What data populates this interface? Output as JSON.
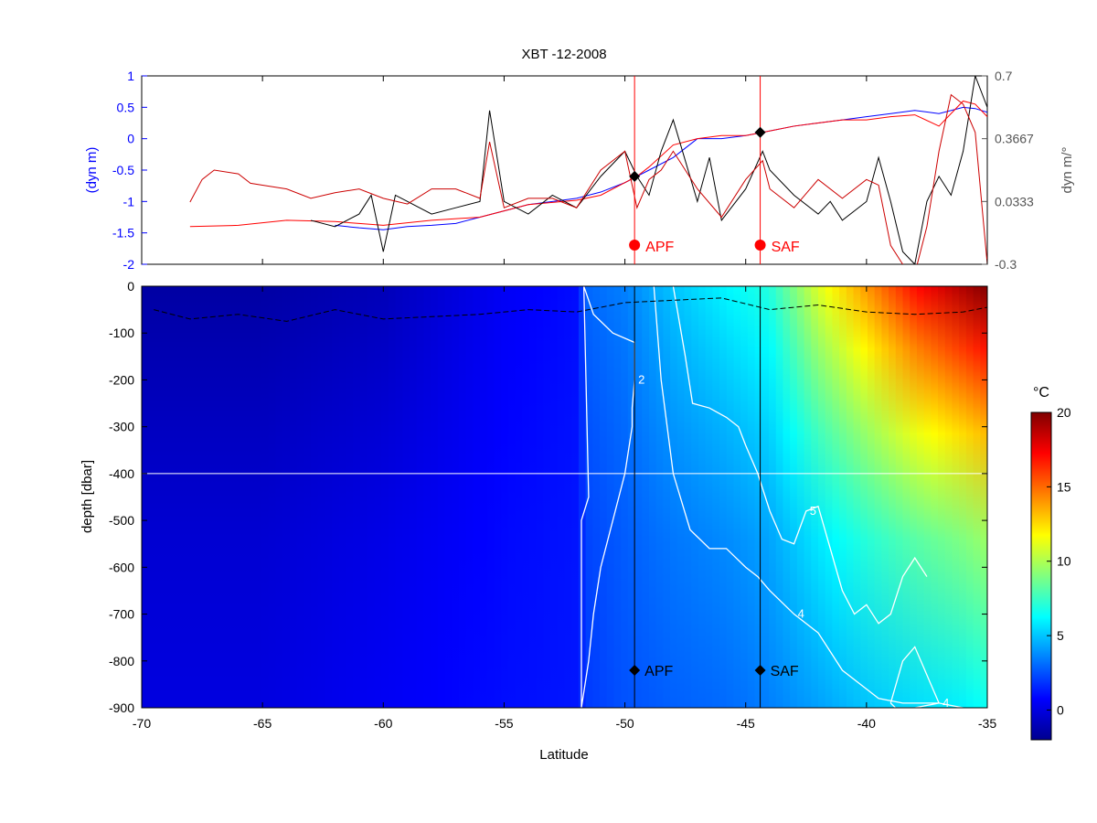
{
  "chart_data": [
    {
      "type": "line",
      "title": "XBT -12-2008",
      "ylabel_left": "(dyn m)",
      "ylabel_right": "dyn m/°",
      "xlim": [
        -70,
        -35
      ],
      "ylim_left": [
        -2,
        1
      ],
      "ylim_right": [
        -0.3,
        0.7
      ],
      "yticks_left": [
        "1",
        "0.5",
        "0",
        "-0.5",
        "-1",
        "-1.5",
        "-2"
      ],
      "yticks_right": [
        "0.7",
        "0.3667",
        "0.0333",
        "-0.3"
      ],
      "colors": {
        "left_axis": "#0000ff",
        "right_axis": "#555555",
        "fronts": "#ff0000",
        "markers": "#000000"
      },
      "series": [
        {
          "color": "#0000ff",
          "x": [
            -62,
            -61,
            -60,
            -59,
            -58,
            -57,
            -56,
            -55,
            -54,
            -53,
            -52,
            -51,
            -50,
            -49.5,
            -49,
            -48,
            -47,
            -46,
            -45,
            -44.3,
            -43,
            -42,
            -41,
            -40,
            -39,
            -38,
            -37,
            -36,
            -35.5,
            -35
          ],
          "y": [
            -1.38,
            -1.42,
            -1.45,
            -1.4,
            -1.38,
            -1.35,
            -1.25,
            -1.15,
            -1.05,
            -1.0,
            -0.95,
            -0.85,
            -0.7,
            -0.6,
            -0.5,
            -0.3,
            0.0,
            0.0,
            0.05,
            0.1,
            0.2,
            0.25,
            0.3,
            0.35,
            0.4,
            0.45,
            0.4,
            0.5,
            0.48,
            0.42
          ]
        },
        {
          "color": "#ff0000",
          "x": [
            -68,
            -66,
            -64,
            -62,
            -61,
            -60,
            -58,
            -56,
            -55,
            -54,
            -52,
            -51,
            -50,
            -49.5,
            -49,
            -48,
            -47,
            -46,
            -45,
            -44.3,
            -43,
            -42,
            -41,
            -40,
            -39,
            -38,
            -37,
            -36,
            -35.5,
            -35
          ],
          "y": [
            -1.4,
            -1.38,
            -1.3,
            -1.32,
            -1.35,
            -1.38,
            -1.3,
            -1.25,
            -1.15,
            -1.05,
            -0.98,
            -0.9,
            -0.7,
            -0.6,
            -0.45,
            -0.1,
            0.0,
            0.05,
            0.05,
            0.1,
            0.2,
            0.25,
            0.3,
            0.3,
            0.35,
            0.38,
            0.2,
            0.6,
            0.55,
            0.35
          ]
        },
        {
          "color": "#000000",
          "x": [
            -63,
            -62,
            -61,
            -60.5,
            -60,
            -59.5,
            -59,
            -58,
            -57,
            -56,
            -55.6,
            -55,
            -54,
            -53,
            -52,
            -51,
            -50,
            -49.5,
            -49,
            -48.5,
            -48,
            -47,
            -46.5,
            -46,
            -45,
            -44.3,
            -44,
            -43,
            -42,
            -41.5,
            -41,
            -40,
            -39.5,
            -39,
            -38.5,
            -38,
            -37.5,
            -37,
            -36.5,
            -36,
            -35.5,
            -35
          ],
          "y": [
            -1.3,
            -1.4,
            -1.2,
            -0.9,
            -1.8,
            -0.9,
            -1.0,
            -1.2,
            -1.1,
            -1.0,
            0.45,
            -1.0,
            -1.2,
            -0.9,
            -1.1,
            -0.6,
            -0.2,
            -0.6,
            -0.9,
            -0.2,
            0.3,
            -1.0,
            -0.3,
            -1.3,
            -0.8,
            -0.2,
            -0.5,
            -0.9,
            -1.2,
            -1.0,
            -1.3,
            -1.0,
            -0.3,
            -1.0,
            -1.8,
            -2.0,
            -1.0,
            -0.6,
            -0.9,
            -0.2,
            1.0,
            0.5
          ]
        },
        {
          "color": "#cc0000",
          "x": [
            -68,
            -67.5,
            -67,
            -66,
            -65.5,
            -65,
            -64,
            -63,
            -62,
            -61,
            -60,
            -59,
            -58,
            -57,
            -56,
            -55.6,
            -55,
            -54,
            -53,
            -52,
            -51,
            -50,
            -49.5,
            -49,
            -48.5,
            -48,
            -47,
            -46,
            -45,
            -44.3,
            -44,
            -43,
            -42,
            -41,
            -40,
            -39.5,
            -39,
            -38.5,
            -38,
            -37.5,
            -37,
            -36.5,
            -36,
            -35.5,
            -35
          ],
          "y": [
            0.03,
            0.15,
            0.2,
            0.18,
            0.13,
            0.12,
            0.1,
            0.05,
            0.08,
            0.1,
            0.05,
            0.02,
            0.1,
            0.1,
            0.05,
            0.35,
            0.0,
            0.05,
            0.05,
            0.0,
            0.2,
            0.3,
            0.0,
            0.15,
            0.2,
            0.3,
            0.1,
            -0.05,
            0.15,
            0.25,
            0.1,
            0.0,
            0.15,
            0.05,
            0.15,
            0.12,
            -0.2,
            -0.3,
            -0.35,
            -0.1,
            0.3,
            0.6,
            0.55,
            0.4,
            -0.3
          ]
        }
      ],
      "fronts": [
        {
          "label": "APF",
          "x": -49.6
        },
        {
          "label": "SAF",
          "x": -44.4
        }
      ],
      "diamonds": [
        {
          "x": -49.6,
          "y": -0.6
        },
        {
          "x": -44.4,
          "y": 0.1
        }
      ]
    },
    {
      "type": "heatmap",
      "xlabel": "Latitude",
      "ylabel": "depth [dbar]",
      "xlim": [
        -70,
        -35
      ],
      "ylim": [
        -900,
        0
      ],
      "xticks": [
        "-70",
        "-65",
        "-60",
        "-55",
        "-50",
        "-45",
        "-40",
        "-35"
      ],
      "yticks": [
        "0",
        "-100",
        "-200",
        "-300",
        "-400",
        "-500",
        "-600",
        "-700",
        "-800",
        "-900"
      ],
      "colorbar": {
        "label": "°C",
        "range": [
          -2,
          20
        ],
        "ticks": [
          "20",
          "15",
          "10",
          "5",
          "0"
        ],
        "colors": [
          "#00008f",
          "#0000ff",
          "#0080ff",
          "#00ffff",
          "#80ff80",
          "#ffff00",
          "#ff8000",
          "#ff0000",
          "#800000"
        ]
      },
      "temperature_profile": {
        "lat": [
          -70,
          -65,
          -60,
          -55,
          -52,
          -51.5,
          -50,
          -48,
          -46,
          -45,
          -44,
          -42,
          -40,
          -38,
          -36,
          -35
        ],
        "surface_c": [
          -1.5,
          -1.5,
          -1.0,
          0.5,
          1.0,
          3.0,
          3.5,
          5.0,
          6.0,
          6.5,
          7.0,
          11.0,
          14.0,
          17.0,
          19.0,
          20.0
        ],
        "deep_c": [
          0.0,
          0.0,
          0.5,
          1.0,
          1.2,
          2.0,
          2.5,
          2.8,
          3.0,
          3.2,
          3.5,
          4.2,
          5.0,
          5.5,
          6.0,
          6.5
        ]
      },
      "contours": [
        {
          "label": "2",
          "lat": [
            -51.8,
            -51.5,
            -51.3,
            -51.0,
            -50.5,
            -50.0,
            -49.7,
            -49.7,
            -49.6,
            -49.6,
            -50.5,
            -51.3,
            -51.5,
            -51.7,
            -51.5,
            -51.8,
            -51.8
          ],
          "depth": [
            -900,
            -800,
            -700,
            -600,
            -500,
            -400,
            -300,
            -260,
            -200,
            -120,
            -100,
            -60,
            -30,
            0,
            -450,
            -500,
            -900
          ]
        },
        {
          "label": "4",
          "lat": [
            -48.8,
            -48.5,
            -48.0,
            -47.3,
            -46.5,
            -45.8,
            -45.0,
            -44.5,
            -44.0,
            -43.0,
            -42.0,
            -41.5,
            -41.0,
            -40.0,
            -39.5,
            -38.5,
            -37.0,
            -36.0
          ],
          "depth": [
            0,
            -200,
            -400,
            -520,
            -560,
            -560,
            -600,
            -620,
            -650,
            -700,
            -740,
            -780,
            -820,
            -860,
            -880,
            -890,
            -890,
            -900
          ]
        },
        {
          "label": "5",
          "lat": [
            -48.0,
            -47.5,
            -47.2,
            -46.5,
            -45.8,
            -45.3,
            -45.0,
            -44.5,
            -44.0,
            -43.5,
            -43.0,
            -42.5,
            -42.0,
            -41.5,
            -41.0,
            -40.5,
            -40.0,
            -39.5,
            -39.0,
            -38.5,
            -38.0,
            -37.5
          ],
          "depth": [
            0,
            -150,
            -250,
            -260,
            -280,
            -300,
            -340,
            -400,
            -480,
            -540,
            -550,
            -480,
            -470,
            -560,
            -650,
            -700,
            -680,
            -720,
            -700,
            -620,
            -580,
            -620
          ]
        },
        {
          "label": "4",
          "lat": [
            -39.0,
            -38.5,
            -38.0,
            -37.5,
            -37.0,
            -38.0,
            -38.8,
            -39.0
          ],
          "depth": [
            -890,
            -800,
            -770,
            -830,
            -890,
            -900,
            -900,
            -890
          ]
        }
      ],
      "mixed_layer": {
        "lat": [
          -69.5,
          -68,
          -66,
          -64,
          -62,
          -60,
          -58,
          -56,
          -54,
          -52,
          -50,
          -48,
          -46,
          -44,
          -42,
          -40,
          -38,
          -36,
          -35
        ],
        "depth": [
          -50,
          -70,
          -60,
          -75,
          -50,
          -70,
          -65,
          -60,
          -50,
          -55,
          -35,
          -30,
          -25,
          -50,
          -40,
          -55,
          -60,
          -55,
          -45
        ]
      },
      "fronts": [
        {
          "label": "APF",
          "x": -49.6
        },
        {
          "label": "SAF",
          "x": -44.4
        }
      ],
      "marker_depth": -820,
      "reference_depth": -400
    }
  ]
}
